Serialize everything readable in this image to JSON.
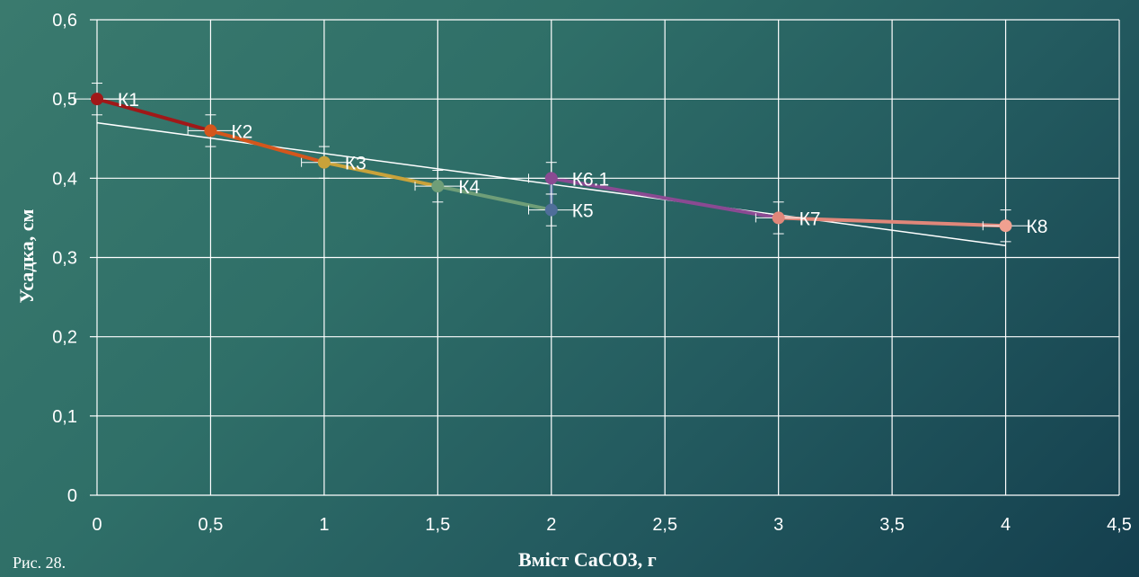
{
  "caption": "Рис. 28.",
  "chart_data": {
    "type": "line",
    "xlabel": "Вміст CaCO3, г",
    "ylabel": "Усадка, см",
    "xlim": [
      0,
      4.5
    ],
    "ylim": [
      0,
      0.6
    ],
    "x_ticks": [
      0,
      0.5,
      1,
      1.5,
      2,
      2.5,
      3,
      3.5,
      4,
      4.5
    ],
    "y_ticks": [
      0,
      0.1,
      0.2,
      0.3,
      0.4,
      0.5,
      0.6
    ],
    "x_tick_labels": [
      "0",
      "0,5",
      "1",
      "1,5",
      "2",
      "2,5",
      "3",
      "3,5",
      "4",
      "4,5"
    ],
    "y_tick_labels": [
      "0",
      "0,1",
      "0,2",
      "0,3",
      "0,4",
      "0,5",
      "0,6"
    ],
    "grid": true,
    "points": [
      {
        "label": "К1",
        "x": 0,
        "y": 0.5,
        "color": "#a01818"
      },
      {
        "label": "К2",
        "x": 0.5,
        "y": 0.46,
        "color": "#d4561c"
      },
      {
        "label": "К3",
        "x": 1,
        "y": 0.42,
        "color": "#c9a23a"
      },
      {
        "label": "К4",
        "x": 1.5,
        "y": 0.39,
        "color": "#6f9e78"
      },
      {
        "label": "К5",
        "x": 2,
        "y": 0.36,
        "color": "#4f6e9a"
      },
      {
        "label": "К6.1",
        "x": 2,
        "y": 0.4,
        "color": "#8a4a92"
      },
      {
        "label": "К7",
        "x": 3,
        "y": 0.35,
        "color": "#e0877a"
      },
      {
        "label": "К8",
        "x": 4,
        "y": 0.34,
        "color": "#f0a090"
      }
    ],
    "error_bars": {
      "y": 0.02,
      "x": 0.1
    },
    "trendline": {
      "x": [
        0,
        4
      ],
      "y": [
        0.47,
        0.315
      ],
      "color": "#ffffff"
    }
  }
}
